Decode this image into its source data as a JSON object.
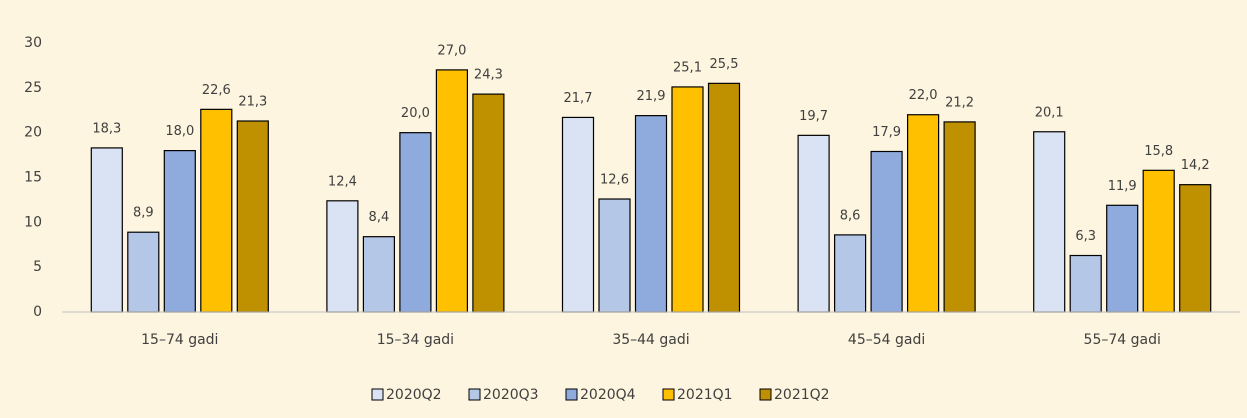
{
  "chart_data": {
    "type": "bar",
    "categories": [
      "15–74 gadi",
      "15–34 gadi",
      "35–44 gadi",
      "45–54 gadi",
      "55–74 gadi"
    ],
    "series": [
      {
        "name": "2020Q2",
        "color": "#dae3f3",
        "values": [
          18.3,
          12.4,
          21.7,
          19.7,
          20.1
        ],
        "value_labels": [
          "18,3",
          "12,4",
          "21,7",
          "19,7",
          "20,1"
        ]
      },
      {
        "name": "2020Q3",
        "color": "#b4c7e7",
        "values": [
          8.9,
          8.4,
          12.6,
          8.6,
          6.3
        ],
        "value_labels": [
          "8,9",
          "8,4",
          "12,6",
          "8,6",
          "6,3"
        ]
      },
      {
        "name": "2020Q4",
        "color": "#8faadc",
        "values": [
          18.0,
          20.0,
          21.9,
          17.9,
          11.9
        ],
        "value_labels": [
          "18,0",
          "20,0",
          "21,9",
          "17,9",
          "11,9"
        ]
      },
      {
        "name": "2021Q1",
        "color": "#ffc000",
        "values": [
          22.6,
          27.0,
          25.1,
          22.0,
          15.8
        ],
        "value_labels": [
          "22,6",
          "27,0",
          "25,1",
          "22,0",
          "15,8"
        ]
      },
      {
        "name": "2021Q2",
        "color": "#bf9000",
        "values": [
          21.3,
          24.3,
          25.5,
          21.2,
          14.2
        ],
        "value_labels": [
          "21,3",
          "24,3",
          "25,5",
          "21,2",
          "14,2"
        ]
      }
    ],
    "ylim": [
      0,
      30
    ],
    "yticks": [
      0,
      5,
      10,
      15,
      20,
      25,
      30
    ],
    "grid": false,
    "legend": "bottom"
  }
}
